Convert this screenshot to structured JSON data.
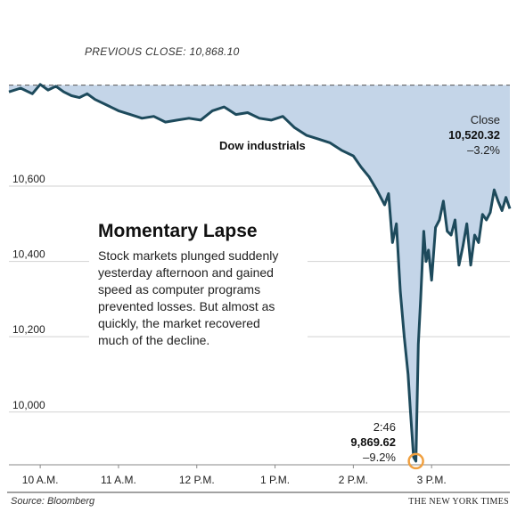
{
  "chart_data": {
    "type": "area",
    "series_label": "Dow industrials",
    "reference_line": {
      "label": "PREVIOUS CLOSE: 10,868.10",
      "value": 10868.1
    },
    "y_ticks": [
      {
        "value": 10000,
        "label": "10,000"
      },
      {
        "value": 10200,
        "label": "10,200"
      },
      {
        "value": 10400,
        "label": "10,400"
      },
      {
        "value": 10600,
        "label": "10,600"
      }
    ],
    "x_ticks": [
      {
        "value": 10,
        "label": "10 A.M."
      },
      {
        "value": 11,
        "label": "11 A.M."
      },
      {
        "value": 12,
        "label": "12 P.M."
      },
      {
        "value": 13,
        "label": "1 P.M."
      },
      {
        "value": 14,
        "label": "2 P.M."
      },
      {
        "value": 15,
        "label": "3 P.M."
      }
    ],
    "xlim": [
      9.6,
      16.0
    ],
    "ylim": [
      9860,
      10990
    ],
    "x": [
      9.6,
      9.75,
      9.9,
      10.0,
      10.1,
      10.2,
      10.3,
      10.4,
      10.5,
      10.6,
      10.7,
      10.85,
      11.0,
      11.15,
      11.3,
      11.45,
      11.6,
      11.75,
      11.9,
      12.05,
      12.2,
      12.35,
      12.5,
      12.65,
      12.8,
      12.95,
      13.1,
      13.25,
      13.4,
      13.55,
      13.7,
      13.85,
      14.0,
      14.1,
      14.2,
      14.3,
      14.4,
      14.45,
      14.5,
      14.55,
      14.6,
      14.65,
      14.7,
      14.73,
      14.77,
      14.8,
      14.83,
      14.86,
      14.9,
      14.93,
      14.96,
      15.0,
      15.05,
      15.1,
      15.15,
      15.2,
      15.25,
      15.3,
      15.35,
      15.4,
      15.45,
      15.5,
      15.55,
      15.6,
      15.65,
      15.7,
      15.75,
      15.8,
      15.85,
      15.9,
      15.95,
      16.0
    ],
    "values": [
      10850,
      10860,
      10845,
      10870,
      10855,
      10865,
      10850,
      10840,
      10835,
      10845,
      10830,
      10815,
      10800,
      10790,
      10780,
      10785,
      10770,
      10775,
      10780,
      10775,
      10800,
      10810,
      10790,
      10795,
      10780,
      10775,
      10785,
      10755,
      10735,
      10725,
      10715,
      10695,
      10680,
      10650,
      10625,
      10590,
      10550,
      10580,
      10450,
      10500,
      10320,
      10200,
      10100,
      10000,
      9880,
      9869.62,
      10180,
      10300,
      10480,
      10400,
      10430,
      10350,
      10490,
      10510,
      10560,
      10480,
      10470,
      10510,
      10390,
      10440,
      10500,
      10390,
      10470,
      10450,
      10525,
      10510,
      10530,
      10590,
      10560,
      10535,
      10570,
      10540
    ],
    "low_annotation": {
      "time": "2:46",
      "value": "9,869.62",
      "change": "–9.2%",
      "x": 14.8,
      "y": 9869.62
    },
    "close_annotation": {
      "label": "Close",
      "value": "10,520.32",
      "change": "–3.2%"
    }
  },
  "info_box": {
    "title": "Momentary Lapse",
    "lines": [
      "Stock markets plunged suddenly",
      "yesterday afternoon and gained",
      "speed as computer programs",
      "prevented losses. But almost as",
      "quickly, the market recovered",
      "much of the decline."
    ]
  },
  "footer": {
    "source": "Source: Bloomberg",
    "credit": "THE NEW YORK TIMES"
  },
  "colors": {
    "line": "#1d4a5c",
    "fill": "#c4d5e8",
    "grid": "#d2d2d2",
    "axis": "#888888",
    "low_marker": "#f0a040"
  }
}
